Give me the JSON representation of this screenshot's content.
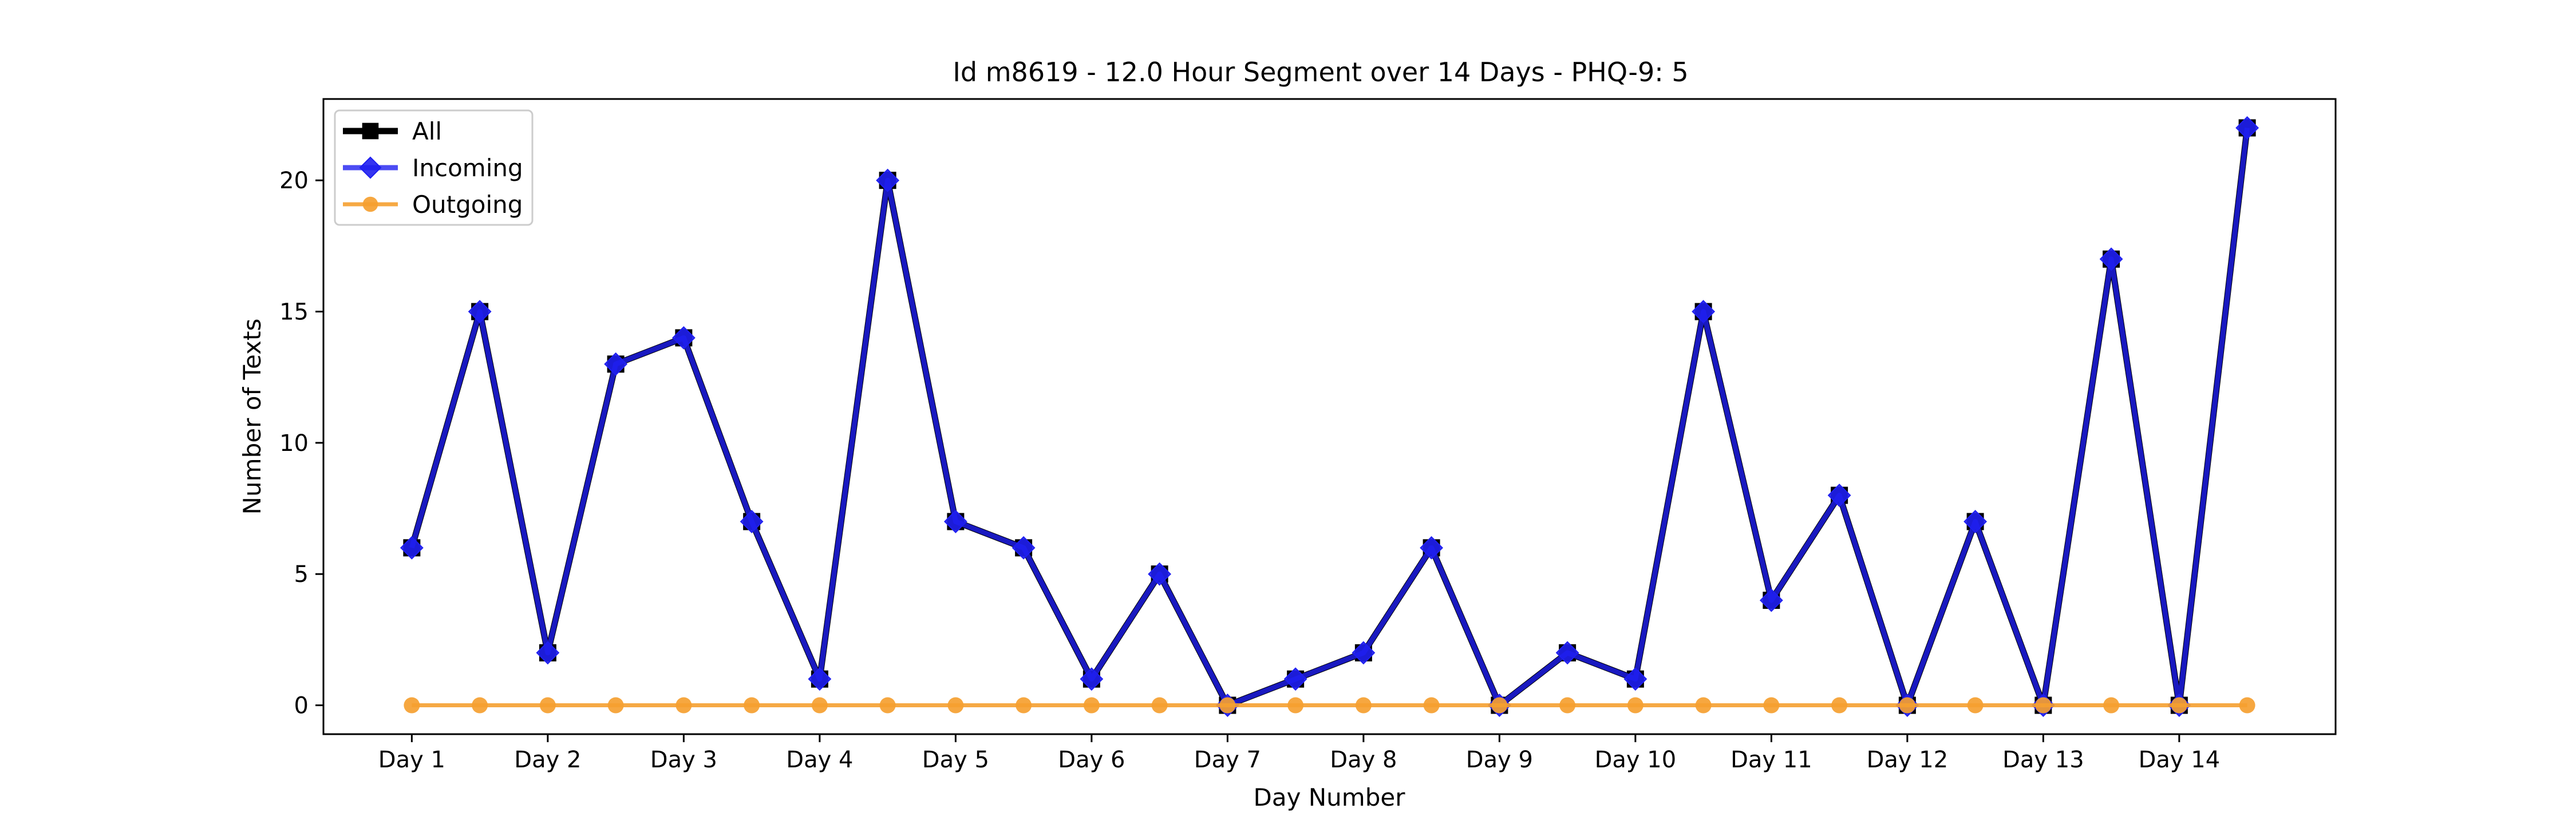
{
  "chart_data": {
    "type": "line",
    "title": "Id m8619 - 12.0 Hour Segment over 14 Days - PHQ-9: 5",
    "xlabel": "Day Number",
    "ylabel": "Number of Texts",
    "x_tick_labels": [
      "Day 1",
      "Day 2",
      "Day 3",
      "Day 4",
      "Day 5",
      "Day 6",
      "Day 7",
      "Day 8",
      "Day 9",
      "Day 10",
      "Day 11",
      "Day 12",
      "Day 13",
      "Day 14"
    ],
    "y_ticks": [
      0,
      5,
      10,
      15,
      20
    ],
    "xlim": [
      0.35,
      15.15
    ],
    "ylim": [
      -1.1,
      23.1
    ],
    "grid": false,
    "legend_position": "upper-left",
    "x": [
      1,
      1.5,
      2,
      2.5,
      3,
      3.5,
      4,
      4.5,
      5,
      5.5,
      6,
      6.5,
      7,
      7.5,
      8,
      8.5,
      9,
      9.5,
      10,
      10.5,
      11,
      11.5,
      12,
      12.5,
      13,
      13.5,
      14,
      14.5
    ],
    "series": [
      {
        "name": "All",
        "color": "#000000",
        "marker": "square",
        "values": [
          6,
          15,
          2,
          13,
          14,
          7,
          1,
          20,
          7,
          6,
          1,
          5,
          0,
          1,
          2,
          6,
          0,
          2,
          1,
          15,
          4,
          8,
          0,
          7,
          0,
          17,
          0,
          22
        ]
      },
      {
        "name": "Incoming",
        "color": "#1f1ff0",
        "marker": "diamond",
        "values": [
          6,
          15,
          2,
          13,
          14,
          7,
          1,
          20,
          7,
          6,
          1,
          5,
          0,
          1,
          2,
          6,
          0,
          2,
          1,
          15,
          4,
          8,
          0,
          7,
          0,
          17,
          0,
          22
        ]
      },
      {
        "name": "Outgoing",
        "color": "#f5a030",
        "marker": "circle",
        "values": [
          0,
          0,
          0,
          0,
          0,
          0,
          0,
          0,
          0,
          0,
          0,
          0,
          0,
          0,
          0,
          0,
          0,
          0,
          0,
          0,
          0,
          0,
          0,
          0,
          0,
          0,
          0,
          0
        ]
      }
    ]
  }
}
